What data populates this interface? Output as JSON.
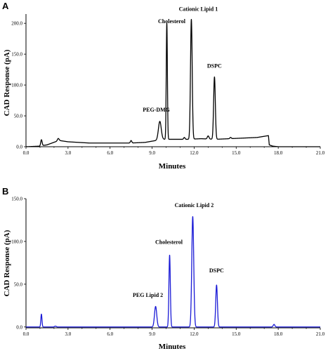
{
  "chart_data": [
    {
      "panel": "A",
      "type": "line",
      "xlabel": "Minutes",
      "ylabel": "CAD Response (pA)",
      "xlim": [
        0,
        21
      ],
      "ylim": [
        0,
        215
      ],
      "x_ticks": [
        0,
        3,
        6,
        9,
        12,
        15,
        18,
        21
      ],
      "x_tick_labels": [
        "0.0",
        "3.0",
        "6.0",
        "9.0",
        "12.0",
        "15.0",
        "18.0",
        "21.0"
      ],
      "y_ticks": [
        0,
        50,
        100,
        150,
        200
      ],
      "y_tick_labels": [
        "0.0",
        "50.0",
        "100.0",
        "150.0",
        "200.0"
      ],
      "line_color": "#000000",
      "baseline": [
        [
          0,
          0
        ],
        [
          1.05,
          1
        ],
        [
          1.2,
          2
        ],
        [
          1.5,
          3
        ],
        [
          2.1,
          8
        ],
        [
          2.4,
          10
        ],
        [
          3.0,
          8
        ],
        [
          4.5,
          6
        ],
        [
          6.0,
          6
        ],
        [
          7.5,
          6
        ],
        [
          8.5,
          7
        ],
        [
          9.0,
          9
        ],
        [
          9.8,
          12
        ],
        [
          10.5,
          12
        ],
        [
          11.5,
          12
        ],
        [
          12.5,
          13
        ],
        [
          13.5,
          12
        ],
        [
          14.5,
          13
        ],
        [
          15.5,
          14
        ],
        [
          16.5,
          15
        ],
        [
          17.3,
          18
        ],
        [
          17.36,
          3
        ],
        [
          17.6,
          1
        ],
        [
          18.0,
          0
        ],
        [
          21.0,
          0
        ]
      ],
      "peaks": [
        {
          "x": 1.1,
          "height": 10,
          "width": 0.05
        },
        {
          "x": 2.3,
          "height": 4,
          "width": 0.06
        },
        {
          "x": 7.5,
          "height": 4,
          "width": 0.05
        },
        {
          "x": 9.55,
          "height": 30,
          "width": 0.1
        },
        {
          "x": 10.05,
          "height": 188,
          "width": 0.04
        },
        {
          "x": 11.3,
          "height": 3,
          "width": 0.05
        },
        {
          "x": 11.8,
          "height": 194,
          "width": 0.06
        },
        {
          "x": 13.0,
          "height": 5,
          "width": 0.06
        },
        {
          "x": 13.45,
          "height": 101,
          "width": 0.06
        },
        {
          "x": 14.6,
          "height": 2,
          "width": 0.05
        }
      ],
      "annotations": [
        {
          "text": "Cationic Lipid 1",
          "x": 12.3,
          "y": 220
        },
        {
          "text": "Cholesterol",
          "x": 10.4,
          "y": 200
        },
        {
          "text": "DSPC",
          "x": 13.45,
          "y": 128
        },
        {
          "text": "PEG-DMG",
          "x": 9.3,
          "y": 57
        }
      ]
    },
    {
      "panel": "B",
      "type": "line",
      "xlabel": "Minutes",
      "ylabel": "CAD Response (pA)",
      "xlim": [
        0,
        21
      ],
      "ylim": [
        -1,
        150
      ],
      "x_ticks": [
        0,
        3,
        6,
        9,
        12,
        15,
        18,
        21
      ],
      "x_tick_labels": [
        "0.0",
        "3.0",
        "6.0",
        "9.0",
        "12.0",
        "15.0",
        "18.0",
        "21.0"
      ],
      "y_ticks": [
        0,
        50,
        100,
        150
      ],
      "y_tick_labels": [
        "0.0",
        "50.0",
        "100.0",
        "150.0"
      ],
      "line_color": "#1a1ad6",
      "baseline": [
        [
          0,
          0
        ],
        [
          21,
          0
        ]
      ],
      "peaks": [
        {
          "x": 1.1,
          "height": 15,
          "width": 0.04
        },
        {
          "x": 2.1,
          "height": 1,
          "width": 0.06
        },
        {
          "x": 9.25,
          "height": 24,
          "width": 0.08
        },
        {
          "x": 10.25,
          "height": 84,
          "width": 0.05
        },
        {
          "x": 11.9,
          "height": 129,
          "width": 0.07
        },
        {
          "x": 13.6,
          "height": 49,
          "width": 0.06
        },
        {
          "x": 17.7,
          "height": 3,
          "width": 0.06
        }
      ],
      "annotations": [
        {
          "text": "Cationic Lipid 2",
          "x": 12.0,
          "y": 140
        },
        {
          "text": "Cholesterol",
          "x": 10.2,
          "y": 97
        },
        {
          "text": "DSPC",
          "x": 13.6,
          "y": 64
        },
        {
          "text": "PEG Lipid 2",
          "x": 8.7,
          "y": 35
        }
      ]
    }
  ]
}
